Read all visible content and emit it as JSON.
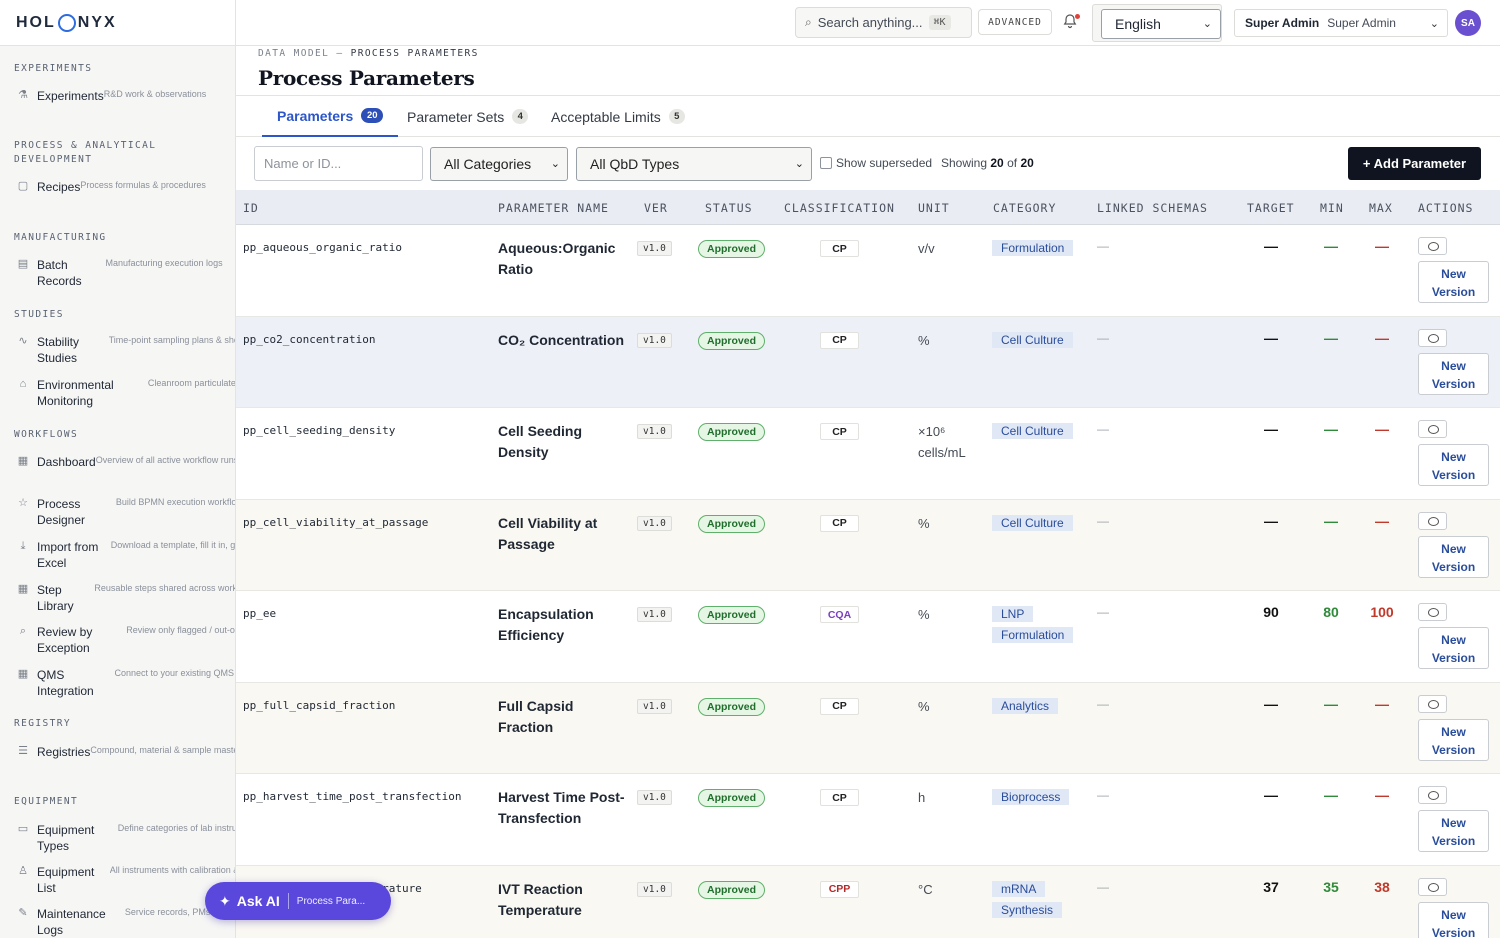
{
  "brand": {
    "left": "HOL",
    "right": "NYX"
  },
  "sidebar": {
    "sections": [
      {
        "title": "EXPERIMENTS",
        "items": [
          {
            "label": "Experiments",
            "sub": "R&D work & observations",
            "icon": "flask-icon",
            "glyph": "⚗"
          }
        ]
      },
      {
        "title": "PROCESS & ANALYTICAL DEVELOPMENT",
        "items": [
          {
            "label": "Recipes",
            "sub": "Process formulas & procedures",
            "icon": "book-icon",
            "glyph": "▢"
          }
        ]
      },
      {
        "title": "MANUFACTURING",
        "items": [
          {
            "label": "Batch Records",
            "sub": "Manufacturing execution logs",
            "icon": "clipboard-icon",
            "glyph": "▤"
          }
        ]
      },
      {
        "title": "STUDIES",
        "items": [
          {
            "label": "Stability Studies",
            "sub": "Time-point sampling plans & shelf-life data",
            "icon": "pulse-icon",
            "glyph": "∿"
          },
          {
            "label": "Environmental Monitoring",
            "sub": "Cleanroom particulate & microbial sampli...",
            "icon": "home-icon",
            "glyph": "⌂"
          }
        ]
      },
      {
        "title": "WORKFLOWS",
        "items": [
          {
            "label": "Dashboard",
            "sub": "Overview of all active workflow runs",
            "icon": "grid-icon",
            "glyph": "▦"
          },
          {
            "label": "Process Designer",
            "sub": "Build BPMN execution workflows",
            "icon": "star-icon",
            "glyph": "☆"
          },
          {
            "label": "Import from Excel",
            "sub": "Download a template, fill it in, generate a ...",
            "icon": "download-icon",
            "glyph": "⤓"
          },
          {
            "label": "Step Library",
            "sub": "Reusable steps shared across workflows",
            "icon": "blocks-icon",
            "glyph": "▦"
          },
          {
            "label": "Review by Exception",
            "sub": "Review only flagged / out-of-spec results",
            "icon": "magnifier-icon",
            "glyph": "⌕"
          },
          {
            "label": "QMS Integration",
            "sub": "Connect to your existing QMS",
            "icon": "puzzle-icon",
            "glyph": "▦"
          }
        ]
      },
      {
        "title": "REGISTRY",
        "items": [
          {
            "label": "Registries",
            "sub": "Compound, material & sample master re...",
            "icon": "database-icon",
            "glyph": "☰"
          }
        ]
      },
      {
        "title": "EQUIPMENT",
        "items": [
          {
            "label": "Equipment Types",
            "sub": "Define categories of lab instruments & de...",
            "icon": "briefcase-icon",
            "glyph": "▭"
          },
          {
            "label": "Equipment List",
            "sub": "All instruments with calibration & status",
            "icon": "person-icon",
            "glyph": "♙"
          },
          {
            "label": "Maintenance Logs",
            "sub": "Service records, PMs & repair history",
            "icon": "wrench-icon",
            "glyph": "✎"
          }
        ]
      }
    ]
  },
  "topbar": {
    "search_placeholder": "Search anything...",
    "search_shortcut": "⌘K",
    "advanced_label": "ADVANCED",
    "language": "English",
    "user_name": "Super Admin",
    "user_role": "Super Admin",
    "avatar_initials": "SA"
  },
  "breadcrumb": {
    "root": "DATA MODEL",
    "sep": "—",
    "current": "PROCESS PARAMETERS"
  },
  "page_title": "Process Parameters",
  "tabs": [
    {
      "label": "Parameters",
      "count": "20",
      "active": true
    },
    {
      "label": "Parameter Sets",
      "count": "4",
      "active": false
    },
    {
      "label": "Acceptable Limits",
      "count": "5",
      "active": false
    }
  ],
  "filters": {
    "search_placeholder": "Name or ID...",
    "category": "All Categories",
    "qbd_type": "All QbD Types",
    "show_superseded": "Show superseded",
    "showing_prefix": "Showing",
    "showing_count": "20",
    "showing_of": "of",
    "showing_total": "20",
    "add_button": "+ Add Parameter"
  },
  "table": {
    "columns": [
      "ID",
      "PARAMETER NAME",
      "VER",
      "STATUS",
      "CLASSIFICATION",
      "UNIT",
      "CATEGORY",
      "LINKED SCHEMAS",
      "TARGET",
      "MIN",
      "MAX",
      "ACTIONS"
    ],
    "new_version_label": "New Version",
    "rows": [
      {
        "id": "pp_aqueous_organic_ratio",
        "name": "Aqueous:Organic Ratio",
        "ver": "v1.0",
        "status": "Approved",
        "classification": "CP",
        "class_kind": "cp",
        "unit": "v/v",
        "category": "Formulation",
        "linked": "—",
        "target": "—",
        "min": "—",
        "max": "—",
        "bg": "#ffffff"
      },
      {
        "id": "pp_co2_concentration",
        "name": "CO₂ Concentration",
        "ver": "v1.0",
        "status": "Approved",
        "classification": "CP",
        "class_kind": "cp",
        "unit": "%",
        "category": "Cell Culture",
        "linked": "—",
        "target": "—",
        "min": "—",
        "max": "—",
        "bg": "#eef0f8"
      },
      {
        "id": "pp_cell_seeding_density",
        "name": "Cell Seeding Density",
        "ver": "v1.0",
        "status": "Approved",
        "classification": "CP",
        "class_kind": "cp",
        "unit": "×10⁶ cells/mL",
        "category": "Cell Culture",
        "linked": "—",
        "target": "—",
        "min": "—",
        "max": "—",
        "bg": "#ffffff"
      },
      {
        "id": "pp_cell_viability_at_passage",
        "name": "Cell Viability at Passage",
        "ver": "v1.0",
        "status": "Approved",
        "classification": "CP",
        "class_kind": "cp",
        "unit": "%",
        "category": "Cell Culture",
        "linked": "—",
        "target": "—",
        "min": "—",
        "max": "—",
        "bg": "#faf8f2"
      },
      {
        "id": "pp_ee",
        "name": "Encapsulation Efficiency",
        "ver": "v1.0",
        "status": "Approved",
        "classification": "CQA",
        "class_kind": "cqa",
        "unit": "%",
        "category": "LNP Formulation",
        "linked": "—",
        "target": "90",
        "min": "80",
        "max": "100",
        "bg": "#ffffff"
      },
      {
        "id": "pp_full_capsid_fraction",
        "name": "Full Capsid Fraction",
        "ver": "v1.0",
        "status": "Approved",
        "classification": "CP",
        "class_kind": "cp",
        "unit": "%",
        "category": "Analytics",
        "linked": "—",
        "target": "—",
        "min": "—",
        "max": "—",
        "bg": "#faf8f2"
      },
      {
        "id": "pp_harvest_time_post_transfection",
        "name": "Harvest Time Post-Transfection",
        "ver": "v1.0",
        "status": "Approved",
        "classification": "CP",
        "class_kind": "cp",
        "unit": "h",
        "category": "Bioprocess",
        "linked": "—",
        "target": "—",
        "min": "—",
        "max": "—",
        "bg": "#ffffff"
      },
      {
        "id": "pp_ivt_reaction_temperature",
        "name": "IVT Reaction Temperature",
        "ver": "v1.0",
        "status": "Approved",
        "classification": "CPP",
        "class_kind": "cpp",
        "unit": "°C",
        "category": "mRNA Synthesis",
        "linked": "—",
        "target": "37",
        "min": "35",
        "max": "38",
        "bg": "#faf8f2"
      }
    ]
  },
  "ask_ai": {
    "label": "Ask AI",
    "context": "Process Para..."
  }
}
